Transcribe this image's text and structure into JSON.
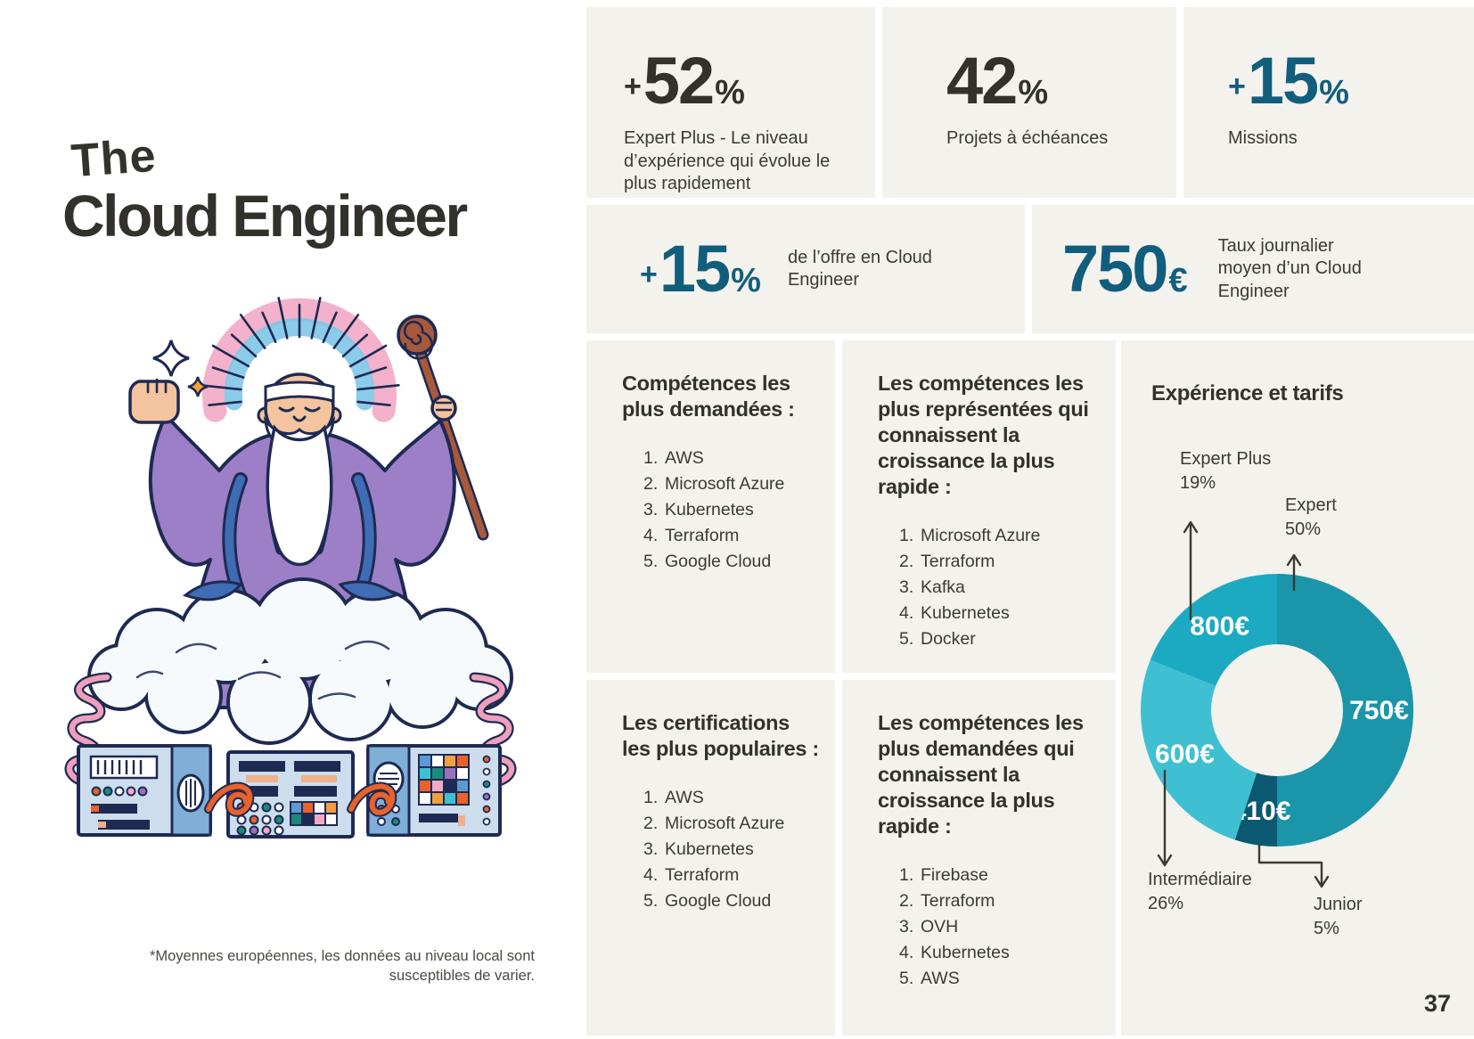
{
  "title": {
    "pre": "The",
    "main": "Cloud Engineer"
  },
  "footnote": "*Moyennes européennes, les données au niveau local sont susceptibles de varier.",
  "page_number": "37",
  "colors": {
    "accent_teal": "#115e7c",
    "ink": "#32312c",
    "card_bg": "#f4f2ec"
  },
  "stats": [
    {
      "id": "expert-plus-growth",
      "prefix": "+",
      "number": "52",
      "suffix": "%",
      "label": "Expert Plus - Le niveau d’expérience qui évolue le plus rapidement"
    },
    {
      "id": "projets-echeances",
      "prefix": "",
      "number": "42",
      "suffix": "%",
      "label": "Projets à échéances"
    },
    {
      "id": "missions",
      "prefix": "+",
      "number": "15",
      "suffix": "%",
      "label": "Missions"
    },
    {
      "id": "offre-cloud-engineer",
      "prefix": "+",
      "number": "15",
      "suffix": "%",
      "label": "de l’offre en Cloud Engineer"
    },
    {
      "id": "taux-journalier",
      "prefix": "",
      "number": "750",
      "suffix": "€",
      "label": "Taux journalier moyen d’un Cloud Engineer"
    }
  ],
  "lists": [
    {
      "id": "competences-demandees",
      "title": "Compétences les plus demandées :",
      "items": [
        "AWS",
        "Microsoft Azure",
        "Kubernetes",
        "Terraform",
        "Google Cloud"
      ]
    },
    {
      "id": "competences-representees-croissance",
      "title": "Les compétences les plus représentées qui connaissent la croissance la plus rapide :",
      "items": [
        "Microsoft Azure",
        "Terraform",
        "Kafka",
        "Kubernetes",
        "Docker"
      ]
    },
    {
      "id": "certifications-populaires",
      "title": "Les certifications les plus populaires :",
      "items": [
        "AWS",
        "Microsoft Azure",
        "Kubernetes",
        "Terraform",
        "Google Cloud"
      ]
    },
    {
      "id": "competences-demandees-croissance",
      "title": "Les compétences les plus demandées qui connaissent la croissance la plus rapide :",
      "items": [
        "Firebase",
        "Terraform",
        "OVH",
        "Kubernetes",
        "AWS"
      ]
    }
  ],
  "chart_data": {
    "type": "pie",
    "variant": "donut",
    "title": "Expérience et tarifs",
    "legend_position": "callouts",
    "direction": "clockwise",
    "start_angle_deg": 0,
    "inner_radius_ratio": 0.48,
    "slices": [
      {
        "label": "Expert",
        "pct": 50,
        "pct_text": "50%",
        "value": "750€",
        "color": "#1b95a9"
      },
      {
        "label": "Junior",
        "pct": 5,
        "pct_text": "5%",
        "value": "410€",
        "color": "#0b5971"
      },
      {
        "label": "Intermédiaire",
        "pct": 26,
        "pct_text": "26%",
        "value": "600€",
        "color": "#3fc0d2"
      },
      {
        "label": "Expert Plus",
        "pct": 19,
        "pct_text": "19%",
        "value": "800€",
        "color": "#1caac2"
      }
    ]
  }
}
